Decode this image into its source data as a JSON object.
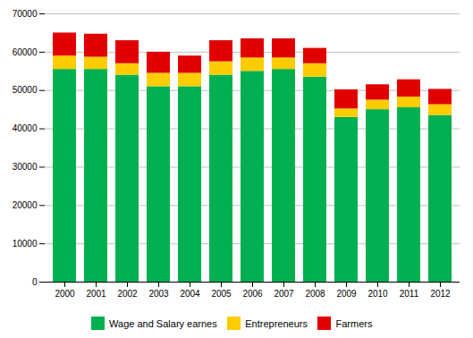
{
  "chart_data": {
    "type": "bar",
    "stacked": true,
    "categories": [
      "2000",
      "2001",
      "2002",
      "2003",
      "2004",
      "2005",
      "2006",
      "2007",
      "2008",
      "2009",
      "2010",
      "2011",
      "2012"
    ],
    "series": [
      {
        "name": "Wage and Salary earnes",
        "color": "#00b050",
        "values": [
          55500,
          55500,
          54000,
          51000,
          51000,
          54000,
          55000,
          55500,
          53500,
          43000,
          45000,
          45500,
          43500
        ]
      },
      {
        "name": "Entrepreneurs",
        "color": "#ffcc00",
        "values": [
          3500,
          3200,
          3000,
          3500,
          3500,
          3500,
          3500,
          3000,
          3500,
          2200,
          2500,
          2800,
          2800
        ]
      },
      {
        "name": "Farmers",
        "color": "#e00000",
        "values": [
          6000,
          6000,
          6000,
          5500,
          4500,
          5500,
          5000,
          5000,
          4000,
          5000,
          4000,
          4500,
          4000
        ]
      }
    ],
    "ylim": [
      0,
      70000
    ],
    "yticks": [
      0,
      10000,
      20000,
      30000,
      40000,
      50000,
      60000,
      70000
    ],
    "grid": true,
    "legend": "bottom"
  }
}
